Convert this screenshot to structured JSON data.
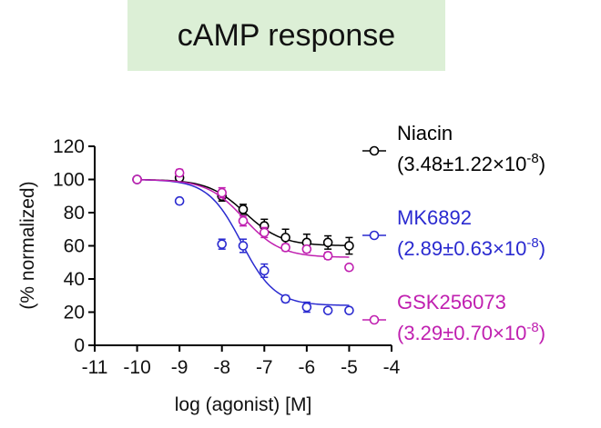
{
  "chart_data": {
    "type": "scatter",
    "title": "cAMP response",
    "xlabel": "log (agonist) [M]",
    "ylabel": "(% normalized)",
    "xlim": [
      -11,
      -4
    ],
    "ylim": [
      0,
      120
    ],
    "xticks": [
      -11,
      -10,
      -9,
      -8,
      -7,
      -6,
      -5,
      -4
    ],
    "yticks": [
      0,
      20,
      40,
      60,
      80,
      100,
      120
    ],
    "grid": false,
    "legend_position": "right",
    "series": [
      {
        "name": "Niacin",
        "legend_value": "(3.48±1.22×10",
        "legend_exp": "-8",
        "legend_close": ")",
        "color": "#000000",
        "fit": {
          "top": 100,
          "bottom": 60,
          "logEC50": -7.46,
          "hill": 1.0
        },
        "points": [
          {
            "x": -10,
            "y": 100,
            "err": 1
          },
          {
            "x": -9,
            "y": 101,
            "err": 2
          },
          {
            "x": -8,
            "y": 90,
            "err": 3
          },
          {
            "x": -7.5,
            "y": 82,
            "err": 3
          },
          {
            "x": -7,
            "y": 72,
            "err": 4
          },
          {
            "x": -6.5,
            "y": 65,
            "err": 5
          },
          {
            "x": -6,
            "y": 62,
            "err": 5
          },
          {
            "x": -5.5,
            "y": 62,
            "err": 4
          },
          {
            "x": -5,
            "y": 60,
            "err": 5
          }
        ]
      },
      {
        "name": "MK6892",
        "legend_value": "(2.89±0.63×10",
        "legend_exp": "-8",
        "legend_close": ")",
        "color": "#2a2ad0",
        "fit": {
          "top": 100,
          "bottom": 24,
          "logEC50": -7.54,
          "hill": 1.1
        },
        "points": [
          {
            "x": -10,
            "y": 100,
            "err": 1
          },
          {
            "x": -9,
            "y": 87,
            "err": 1
          },
          {
            "x": -8,
            "y": 61,
            "err": 3
          },
          {
            "x": -7.5,
            "y": 60,
            "err": 4
          },
          {
            "x": -7,
            "y": 45,
            "err": 4
          },
          {
            "x": -6.5,
            "y": 28,
            "err": 2
          },
          {
            "x": -6,
            "y": 23,
            "err": 3
          },
          {
            "x": -5.5,
            "y": 21,
            "err": 1
          },
          {
            "x": -5,
            "y": 21,
            "err": 1
          }
        ]
      },
      {
        "name": "GSK256073",
        "legend_value": "(3.29±0.70×10",
        "legend_exp": "-8",
        "legend_close": ")",
        "color": "#c020b0",
        "fit": {
          "top": 100,
          "bottom": 53,
          "logEC50": -7.48,
          "hill": 1.0
        },
        "points": [
          {
            "x": -10,
            "y": 100,
            "err": 1
          },
          {
            "x": -9,
            "y": 104,
            "err": 2
          },
          {
            "x": -8,
            "y": 92,
            "err": 3
          },
          {
            "x": -7.5,
            "y": 75,
            "err": 3
          },
          {
            "x": -7,
            "y": 68,
            "err": 3
          },
          {
            "x": -6.5,
            "y": 59,
            "err": 2
          },
          {
            "x": -6,
            "y": 58,
            "err": 2
          },
          {
            "x": -5.5,
            "y": 54,
            "err": 2
          },
          {
            "x": -5,
            "y": 47,
            "err": 1
          }
        ]
      }
    ]
  }
}
